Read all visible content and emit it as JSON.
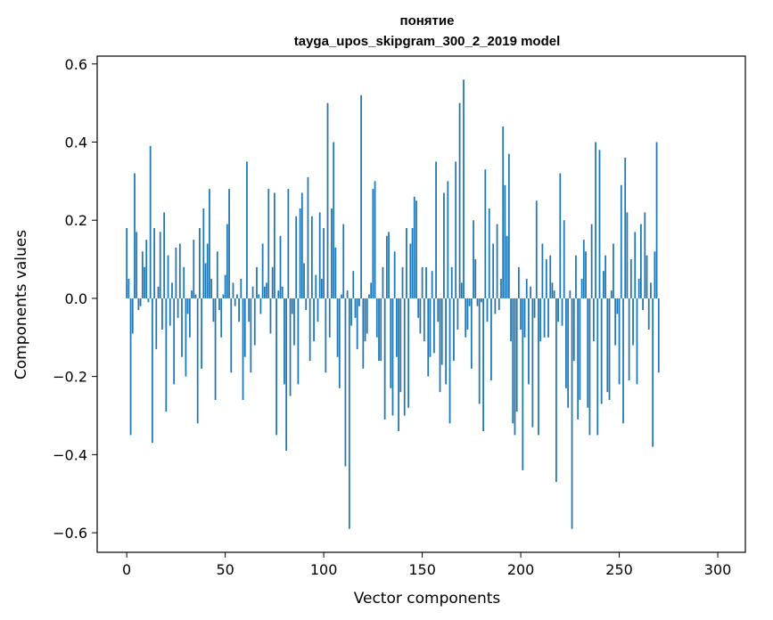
{
  "chart_data": {
    "type": "bar",
    "title": "понятие",
    "subtitle": "tayga_upos_skipgram_300_2_2019 model",
    "xlabel": "Vector components",
    "ylabel": "Components values",
    "xlim": [
      -15,
      314
    ],
    "ylim": [
      -0.65,
      0.62
    ],
    "xticks": [
      0,
      50,
      100,
      150,
      200,
      250,
      300
    ],
    "yticks": [
      -0.6,
      -0.4,
      -0.2,
      0.0,
      0.2,
      0.4,
      0.6
    ],
    "xtick_labels": [
      "0",
      "50",
      "100",
      "150",
      "200",
      "250",
      "300"
    ],
    "ytick_labels": [
      "−0.6",
      "−0.4",
      "−0.2",
      "0.0",
      "0.2",
      "0.4",
      "0.6"
    ],
    "bar_color": "#1f77b4",
    "grid": false,
    "legend": "none",
    "values": [
      0.18,
      0.05,
      -0.35,
      -0.09,
      0.32,
      0.17,
      -0.03,
      -0.02,
      0.12,
      0.08,
      0.15,
      -0.01,
      0.39,
      -0.37,
      0.18,
      -0.13,
      0.03,
      0.17,
      -0.08,
      0.22,
      -0.29,
      0.11,
      -0.07,
      0.04,
      -0.22,
      0.13,
      -0.05,
      0.14,
      -0.15,
      0.08,
      -0.2,
      -0.04,
      -0.1,
      0.02,
      0.15,
      0.01,
      -0.32,
      0.18,
      -0.18,
      0.23,
      0.09,
      0.14,
      0.28,
      0.05,
      -0.06,
      -0.26,
      0.12,
      -0.03,
      -0.1,
      0.01,
      0.06,
      0.19,
      0.28,
      -0.19,
      0.04,
      -0.02,
      0.01,
      -0.06,
      0.05,
      -0.26,
      -0.15,
      0.35,
      -0.06,
      -0.19,
      0.03,
      -0.12,
      0.08,
      0.01,
      -0.04,
      0.14,
      0.03,
      0.04,
      0.28,
      -0.09,
      0.08,
      0.27,
      -0.35,
      0.02,
      0.16,
      0.03,
      -0.22,
      -0.39,
      0.28,
      -0.25,
      -0.04,
      -0.12,
      0.21,
      -0.22,
      0.23,
      0.27,
      0.09,
      -0.03,
      0.31,
      -0.16,
      0.21,
      -0.11,
      0.06,
      -0.06,
      0.22,
      0.05,
      0.18,
      -0.19,
      0.5,
      -0.1,
      0.23,
      0.4,
      0.13,
      -0.15,
      -0.23,
      0.01,
      0.19,
      -0.43,
      0.02,
      -0.59,
      -0.07,
      0.07,
      -0.05,
      -0.13,
      -0.02,
      0.52,
      -0.18,
      -0.11,
      -0.09,
      0.01,
      0.04,
      0.28,
      0.3,
      -0.1,
      -0.16,
      -0.16,
      0.08,
      -0.31,
      0.16,
      0.17,
      -0.23,
      -0.3,
      0.12,
      -0.15,
      -0.34,
      -0.24,
      0.08,
      -0.3,
      0.18,
      -0.28,
      0.14,
      0.18,
      0.26,
      0.25,
      -0.05,
      -0.09,
      0.08,
      -0.11,
      0.08,
      -0.2,
      -0.15,
      0.07,
      -0.14,
      0.35,
      -0.06,
      -0.24,
      -0.17,
      0.27,
      -0.22,
      0.3,
      -0.32,
      0.08,
      -0.16,
      0.35,
      -0.08,
      0.5,
      0.04,
      0.56,
      -0.1,
      -0.08,
      -0.02,
      -0.18,
      0.2,
      0.1,
      -0.02,
      -0.27,
      -0.01,
      -0.34,
      0.33,
      -0.06,
      0.23,
      -0.21,
      0.14,
      -0.04,
      0.19,
      -0.03,
      0.05,
      0.44,
      0.29,
      0.16,
      0.37,
      -0.11,
      -0.32,
      -0.35,
      -0.29,
      0.08,
      -0.08,
      -0.44,
      -0.1,
      0.05,
      -0.22,
      0.03,
      -0.33,
      -0.05,
      0.25,
      -0.35,
      -0.11,
      0.14,
      -0.1,
      0.1,
      -0.1,
      0.11,
      0.04,
      0.02,
      -0.47,
      -0.06,
      0.32,
      -0.07,
      0.2,
      -0.23,
      -0.28,
      0.02,
      -0.59,
      -0.16,
      0.11,
      -0.31,
      -0.26,
      0.05,
      0.15,
      0.12,
      -0.28,
      -0.35,
      0.19,
      -0.11,
      0.4,
      -0.35,
      0.38,
      -0.27,
      0.07,
      0.11,
      -0.24,
      -0.26,
      0.02,
      0.14,
      -0.12,
      -0.04,
      -0.22,
      0.29,
      -0.32,
      0.36,
      0.22,
      -0.21,
      0.1,
      -0.12,
      0.17,
      -0.22,
      0.05,
      0.19,
      -0.03,
      0.22,
      0.11,
      -0.08,
      0.04,
      -0.38,
      0.12,
      0.4,
      -0.19
    ],
    "ylim_note": ""
  }
}
